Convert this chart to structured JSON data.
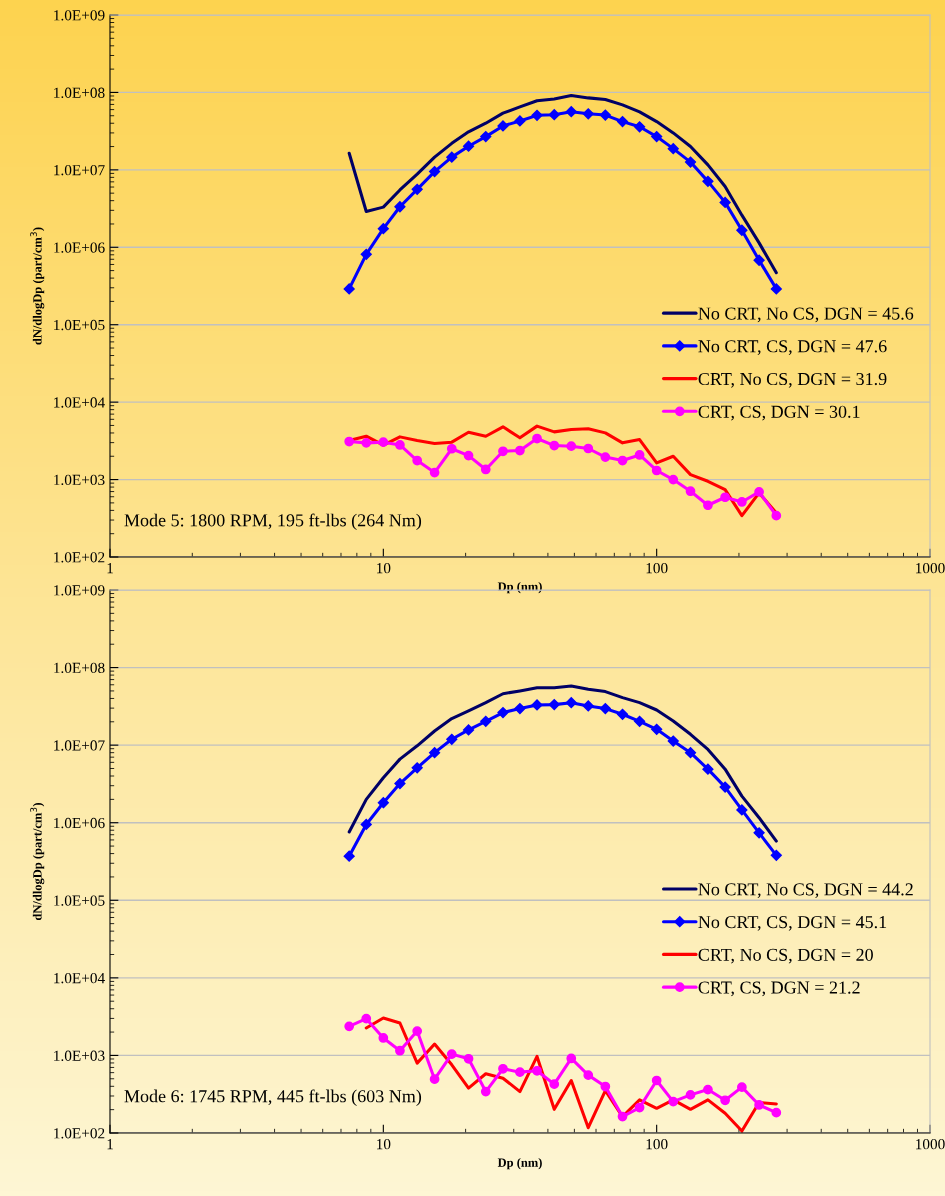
{
  "chart_data": [
    {
      "type": "line",
      "xlabel": "Dp (nm)",
      "ylabel": "dN/dlogDp (part/cm$^{3}$)",
      "log": "xy",
      "grid": "y",
      "legend": "bottom right",
      "xlim": [
        1,
        1000
      ],
      "xticks": [
        1,
        10,
        100,
        1000
      ],
      "ylim": [
        100,
        1000000000
      ],
      "yticks": [
        {
          "value": 100,
          "label": "1.0E+02"
        },
        {
          "value": 1000,
          "label": "1.0E+03"
        },
        {
          "value": 10000,
          "label": "1.0E+04"
        },
        {
          "value": 100000,
          "label": "1.0E+05"
        },
        {
          "value": 1000000,
          "label": "1.0E+06"
        },
        {
          "value": 10000000,
          "label": "1.0E+07"
        },
        {
          "value": 100000000,
          "label": "1.0E+08"
        },
        {
          "value": 1000000000,
          "label": "1.0E+09"
        }
      ],
      "x": [
        7.5,
        8.66,
        10,
        11.5,
        13.3,
        15.4,
        17.8,
        20.5,
        23.7,
        27.4,
        31.6,
        36.5,
        42.2,
        48.7,
        56.2,
        64.9,
        75,
        86.6,
        100,
        115,
        133,
        154,
        178,
        205,
        237,
        274
      ],
      "annotations": [
        "Mode 5: 1800 RPM, 195 ft-lbs (264 Nm)"
      ],
      "series": [
        {
          "name": "No CRT, No CS, DGN = 45.6",
          "color": "#000066",
          "marker": "none",
          "values": [
            16400000,
            2900000,
            3300000,
            5500000,
            8800000,
            14600000,
            22000000,
            31000000,
            40000000,
            54000000,
            65000000,
            78000000,
            82000000,
            91000000,
            85000000,
            81000000,
            69000000,
            56000000,
            42000000,
            30000000,
            20000000,
            11600000,
            6100000,
            2600000,
            1140000,
            470000
          ]
        },
        {
          "name": "No CRT, CS, DGN = 47.6",
          "color": "#0000ff",
          "marker": "diamond",
          "values": [
            290000,
            810000,
            1740000,
            3340000,
            5600000,
            9500000,
            14600000,
            20200000,
            26900000,
            36900000,
            42800000,
            50600000,
            51600000,
            56400000,
            53000000,
            51000000,
            42000000,
            36000000,
            26900000,
            18800000,
            12600000,
            7100000,
            3800000,
            1660000,
            680000,
            290000
          ]
        },
        {
          "name": "CRT, No CS, DGN = 31.9",
          "color": "#ff0000",
          "marker": "none",
          "values": [
            3190,
            3630,
            2780,
            3560,
            3190,
            2920,
            3040,
            4090,
            3630,
            4800,
            3460,
            4900,
            4130,
            4430,
            4520,
            4010,
            2980,
            3290,
            1640,
            2000,
            1160,
            951,
            743,
            342,
            673,
            371
          ]
        },
        {
          "name": "CRT, CS, DGN = 30.1",
          "color": "#ff00ff",
          "marker": "circle",
          "values": [
            3100,
            2980,
            3040,
            2800,
            1760,
            1230,
            2500,
            2040,
            1350,
            2320,
            2370,
            3390,
            2750,
            2700,
            2520,
            1950,
            1760,
            2080,
            1310,
            1000,
            707,
            466,
            591,
            514,
            693,
            342
          ]
        }
      ]
    },
    {
      "type": "line",
      "xlabel": "Dp (nm)",
      "ylabel": "dN/dlogDp (part/cm$^{3}$)",
      "log": "xy",
      "grid": "y",
      "legend": "bottom right",
      "xlim": [
        1,
        1000
      ],
      "xticks": [
        1,
        10,
        100,
        1000
      ],
      "ylim": [
        100,
        1000000000
      ],
      "yticks": [
        {
          "value": 100,
          "label": "1.0E+02"
        },
        {
          "value": 1000,
          "label": "1.0E+03"
        },
        {
          "value": 10000,
          "label": "1.0E+04"
        },
        {
          "value": 100000,
          "label": "1.0E+05"
        },
        {
          "value": 1000000,
          "label": "1.0E+06"
        },
        {
          "value": 10000000,
          "label": "1.0E+07"
        },
        {
          "value": 100000000,
          "label": "1.0E+08"
        },
        {
          "value": 1000000000,
          "label": "1.0E+09"
        }
      ],
      "x": [
        7.5,
        8.66,
        10,
        11.5,
        13.3,
        15.4,
        17.8,
        20.5,
        23.7,
        27.4,
        31.6,
        36.5,
        42.2,
        48.7,
        56.2,
        64.9,
        75,
        86.6,
        100,
        115,
        133,
        154,
        178,
        205,
        237,
        274
      ],
      "annotations": [
        "Mode 6: 1745 RPM, 445 ft-lbs (603 Nm)"
      ],
      "series": [
        {
          "name": "No CRT, No CS, DGN = 44.2",
          "color": "#000066",
          "marker": "none",
          "values": [
            760000,
            2000000,
            3800000,
            6600000,
            9800000,
            15200000,
            22000000,
            27600000,
            35300000,
            46000000,
            50000000,
            55000000,
            55000000,
            58000000,
            52500000,
            49000000,
            41000000,
            35300000,
            28400000,
            20500000,
            13800000,
            8800000,
            4900000,
            2200000,
            1160000,
            580000
          ]
        },
        {
          "name": "No CRT, CS, DGN = 45.1",
          "color": "#0000ff",
          "marker": "diamond",
          "values": [
            370000,
            950000,
            1810000,
            3200000,
            5100000,
            8000000,
            11900000,
            15700000,
            20300000,
            26300000,
            29600000,
            33000000,
            33300000,
            35300000,
            32000000,
            29600000,
            25000000,
            20300000,
            16000000,
            11300000,
            8000000,
            4900000,
            2880000,
            1460000,
            740000,
            380000
          ]
        },
        {
          "name": "CRT, No CS, DGN = 20",
          "color": "#ff0000",
          "marker": "none",
          "values": [
            null,
            2260,
            3040,
            2620,
            796,
            1400,
            757,
            379,
            580,
            509,
            342,
            970,
            202,
            475,
            117,
            352,
            163,
            267,
            208,
            267,
            202,
            267,
            180,
            106,
            247,
            237
          ]
        },
        {
          "name": "CRT, CS, DGN = 21.2",
          "color": "#ff00ff",
          "marker": "circle",
          "values": [
            2370,
            2980,
            1680,
            1150,
            2060,
            494,
            1040,
            905,
            342,
            673,
            609,
            634,
            426,
            914,
            557,
            397,
            163,
            213,
            475,
            254,
            310,
            363,
            264,
            390,
            230,
            183
          ]
        }
      ]
    }
  ]
}
